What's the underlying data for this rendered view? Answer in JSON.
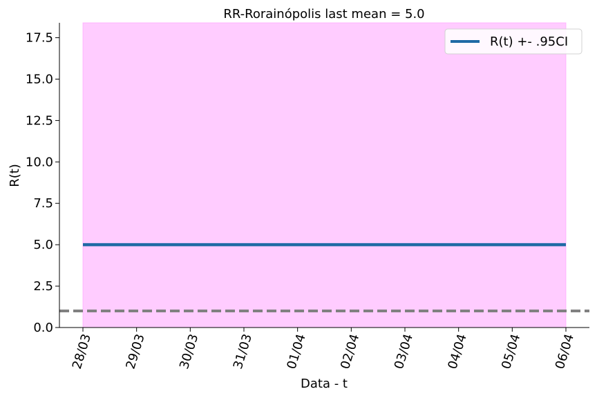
{
  "chart_data": {
    "type": "line",
    "title": "RR-Rorainópolis last mean = 5.0",
    "xlabel": "Data - t",
    "ylabel": "R(t)",
    "ylim": [
      0,
      18.4
    ],
    "yticks": [
      0.0,
      2.5,
      5.0,
      7.5,
      10.0,
      12.5,
      15.0,
      17.5
    ],
    "ytick_labels": [
      "0.0",
      "2.5",
      "5.0",
      "7.5",
      "10.0",
      "12.5",
      "15.0",
      "17.5"
    ],
    "categories": [
      "28/03",
      "29/03",
      "30/03",
      "31/03",
      "01/04",
      "02/04",
      "03/04",
      "04/04",
      "05/04",
      "06/04"
    ],
    "series": [
      {
        "name": "R(t) +- .95CI",
        "values": [
          5.0,
          5.0,
          5.0,
          5.0,
          5.0,
          5.0,
          5.0,
          5.0,
          5.0,
          5.0
        ],
        "lower": [
          0.0,
          0.0,
          0.0,
          0.0,
          0.0,
          0.0,
          0.0,
          0.0,
          0.0,
          0.0
        ],
        "upper": [
          18.4,
          18.4,
          18.4,
          18.4,
          18.4,
          18.4,
          18.4,
          18.4,
          18.4,
          18.4
        ],
        "color": "#1f6aa5",
        "band_color": "#ff99ff"
      }
    ],
    "reference_line": {
      "y": 1.0,
      "color": "#808080",
      "style": "dashed"
    },
    "legend": {
      "placement": "top-right"
    },
    "grid": false
  }
}
